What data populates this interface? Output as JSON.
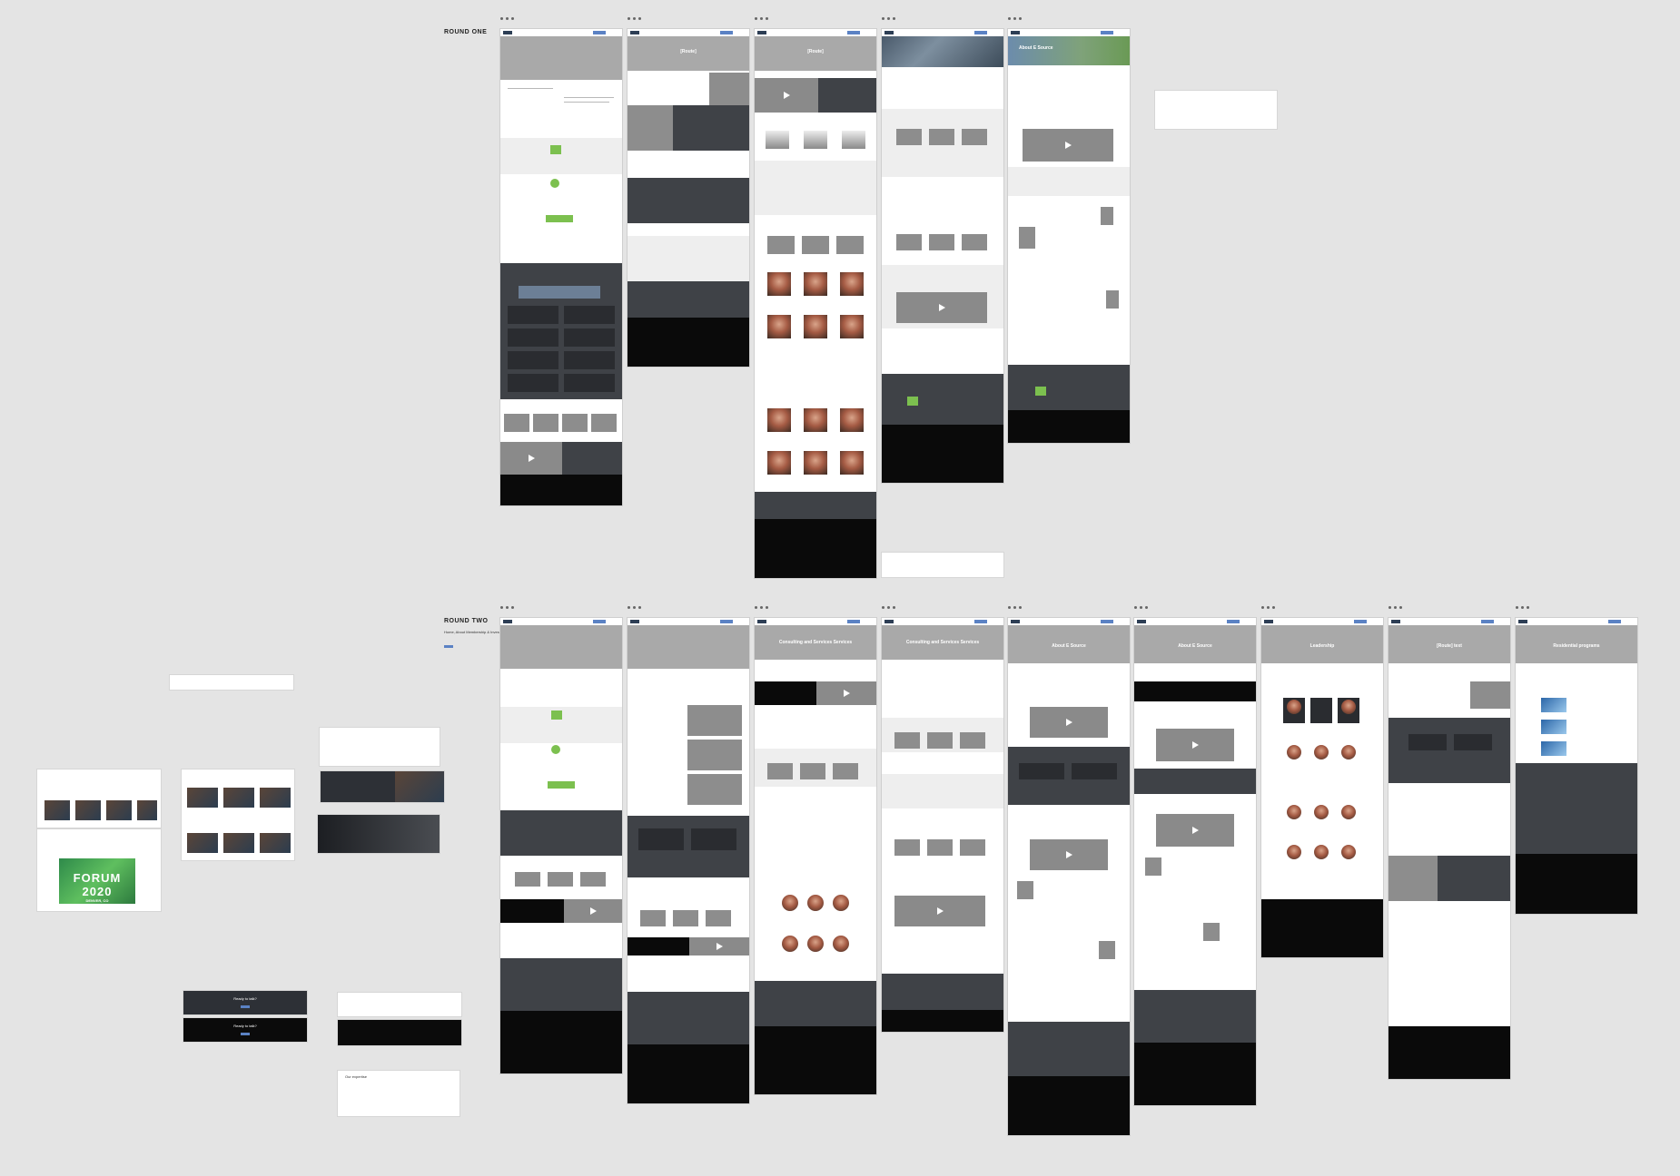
{
  "labels": {
    "round_one": "ROUND ONE",
    "round_two": "ROUND TWO",
    "round_two_sub": "Home, About Membership & Investing"
  },
  "hero_titles": {
    "r1b2": "[Route]",
    "r1b3": "[Route]",
    "r1b5": "About E Source",
    "r2b3": "Consulting and Services Services",
    "r2b4": "Consulting and Services Services",
    "r2b5": "About E Source",
    "r2b6": "About E Source",
    "r2b7": "Leadership",
    "r2b8": "[Route] text",
    "r2b9": "Residential programs"
  },
  "loose_items": {
    "ready": "Ready to talk?",
    "ready_2": "Ready to talk?",
    "forum_title": "FORUM 2020",
    "forum_sub": "DENVER, CO",
    "our_expertise": "Our expertise"
  },
  "colors": {
    "canvas": "#e4e4e4",
    "accent": "#5b82c4",
    "dark_band": "#3f4247",
    "footer": "#0a0a0a"
  }
}
